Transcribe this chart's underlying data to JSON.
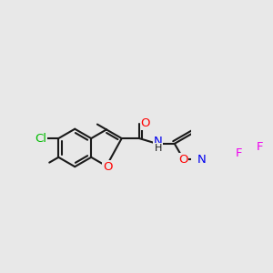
{
  "background_color": "#e8e8e8",
  "bond_color": "#1a1a1a",
  "bond_width": 1.5,
  "atom_colors": {
    "O": "#ff0000",
    "N": "#0000ee",
    "Cl": "#00bb00",
    "F": "#ee00ee",
    "C": "#1a1a1a",
    "H": "#1a1a1a"
  },
  "font_size": 9.5
}
